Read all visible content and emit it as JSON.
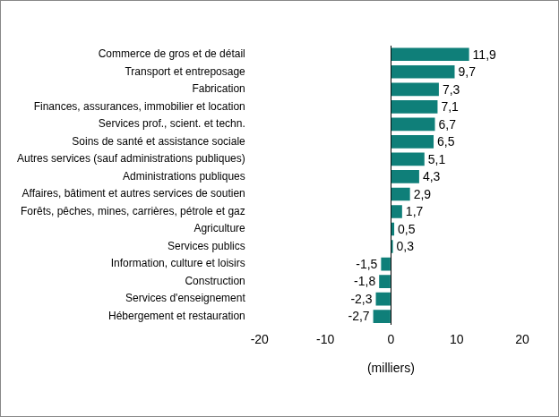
{
  "chart_data": {
    "type": "bar",
    "orientation": "horizontal",
    "categories": [
      "Commerce de gros et de détail",
      "Transport et entreposage",
      "Fabrication",
      "Finances, assurances, immobilier et location",
      "Services prof., scient. et techn.",
      "Soins de santé et assistance sociale",
      "Autres services (sauf administrations publiques)",
      "Administrations publiques",
      "Affaires, bâtiment et autres services de soutien",
      "Forêts, pêches, mines, carrières, pétrole et gaz",
      "Agriculture",
      "Services publics",
      "Information, culture et loisirs",
      "Construction",
      "Services d'enseignement",
      "Hébergement et restauration"
    ],
    "values": [
      11.9,
      9.7,
      7.3,
      7.1,
      6.7,
      6.5,
      5.1,
      4.3,
      2.9,
      1.7,
      0.5,
      0.3,
      -1.5,
      -1.8,
      -2.3,
      -2.7
    ],
    "value_labels": [
      "11,9",
      "9,7",
      "7,3",
      "7,1",
      "6,7",
      "6,5",
      "5,1",
      "4,3",
      "2,9",
      "1,7",
      "0,5",
      "0,3",
      "-1,5",
      "-1,8",
      "-2,3",
      "-2,7"
    ],
    "color": "#0f7f79",
    "xlim": [
      -20,
      20
    ],
    "xticks": [
      -20,
      -10,
      0,
      10,
      20
    ],
    "xlabel": "(milliers)",
    "grid": false,
    "data_labels": true
  }
}
